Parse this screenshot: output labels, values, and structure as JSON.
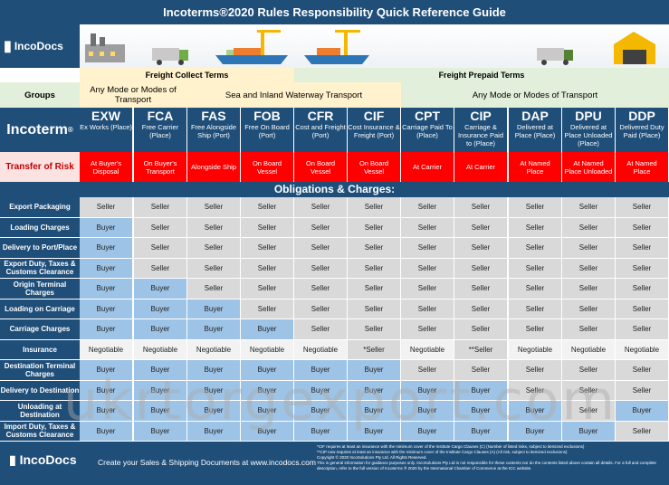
{
  "title": "Incoterms®2020 Rules Responsibility Quick Reference Guide",
  "brand": "IncoDocs",
  "bands": {
    "collect": "Freight Collect Terms",
    "prepaid": "Freight Prepaid Terms"
  },
  "groups": {
    "label": "Groups",
    "any1": "Any Mode or Modes of Transport",
    "sea": "Sea and Inland Waterway Transport",
    "any2": "Any Mode or Modes of Transport"
  },
  "incoterm_label": "Incoterm",
  "risk_label": "Transfer of Risk",
  "obligations_title": "Obligations & Charges:",
  "terms": [
    {
      "code": "EXW",
      "desc": "Ex Works (Place)",
      "risk": "At Buyer's Disposal"
    },
    {
      "code": "FCA",
      "desc": "Free Carrier (Place)",
      "risk": "On Buyer's Transport"
    },
    {
      "code": "FAS",
      "desc": "Free Alongside Ship (Port)",
      "risk": "Alongside Ship"
    },
    {
      "code": "FOB",
      "desc": "Free On Board (Port)",
      "risk": "On Board Vessel"
    },
    {
      "code": "CFR",
      "desc": "Cost and Freight (Port)",
      "risk": "On Board Vessel"
    },
    {
      "code": "CIF",
      "desc": "Cost Insurance & Freight (Port)",
      "risk": "On Board Vessel"
    },
    {
      "code": "CPT",
      "desc": "Carriage Paid To (Place)",
      "risk": "At Carrier"
    },
    {
      "code": "CIP",
      "desc": "Carriage & Insurance Paid to (Place)",
      "risk": "At Carrier"
    },
    {
      "code": "DAP",
      "desc": "Delivered at Place (Place)",
      "risk": "At Named Place"
    },
    {
      "code": "DPU",
      "desc": "Delivered at Place Unloaded (Place)",
      "risk": "At Named Place Unloaded"
    },
    {
      "code": "DDP",
      "desc": "Delivered Duty Paid (Place)",
      "risk": "At Named Place"
    }
  ],
  "rows": [
    {
      "label": "Export Packaging",
      "cells": [
        "Seller",
        "Seller",
        "Seller",
        "Seller",
        "Seller",
        "Seller",
        "Seller",
        "Seller",
        "Seller",
        "Seller",
        "Seller"
      ]
    },
    {
      "label": "Loading Charges",
      "cells": [
        "Buyer",
        "Seller",
        "Seller",
        "Seller",
        "Seller",
        "Seller",
        "Seller",
        "Seller",
        "Seller",
        "Seller",
        "Seller"
      ]
    },
    {
      "label": "Delivery to Port/Place",
      "cells": [
        "Buyer",
        "Seller",
        "Seller",
        "Seller",
        "Seller",
        "Seller",
        "Seller",
        "Seller",
        "Seller",
        "Seller",
        "Seller"
      ]
    },
    {
      "label": "Export Duty, Taxes & Customs Clearance",
      "cells": [
        "Buyer",
        "Seller",
        "Seller",
        "Seller",
        "Seller",
        "Seller",
        "Seller",
        "Seller",
        "Seller",
        "Seller",
        "Seller"
      ]
    },
    {
      "label": "Origin Terminal Charges",
      "cells": [
        "Buyer",
        "Buyer",
        "Seller",
        "Seller",
        "Seller",
        "Seller",
        "Seller",
        "Seller",
        "Seller",
        "Seller",
        "Seller"
      ]
    },
    {
      "label": "Loading on Carriage",
      "cells": [
        "Buyer",
        "Buyer",
        "Buyer",
        "Seller",
        "Seller",
        "Seller",
        "Seller",
        "Seller",
        "Seller",
        "Seller",
        "Seller"
      ]
    },
    {
      "label": "Carriage Charges",
      "cells": [
        "Buyer",
        "Buyer",
        "Buyer",
        "Buyer",
        "Seller",
        "Seller",
        "Seller",
        "Seller",
        "Seller",
        "Seller",
        "Seller"
      ]
    },
    {
      "label": "Insurance",
      "cells": [
        "Negotiable",
        "Negotiable",
        "Negotiable",
        "Negotiable",
        "Negotiable",
        "*Seller",
        "Negotiable",
        "**Seller",
        "Negotiable",
        "Negotiable",
        "Negotiable"
      ]
    },
    {
      "label": "Destination Terminal Charges",
      "cells": [
        "Buyer",
        "Buyer",
        "Buyer",
        "Buyer",
        "Buyer",
        "Buyer",
        "Seller",
        "Seller",
        "Seller",
        "Seller",
        "Seller"
      ]
    },
    {
      "label": "Delivery to Destination",
      "cells": [
        "Buyer",
        "Buyer",
        "Buyer",
        "Buyer",
        "Buyer",
        "Buyer",
        "Buyer",
        "Buyer",
        "Seller",
        "Seller",
        "Seller"
      ]
    },
    {
      "label": "Unloading at Destination",
      "cells": [
        "Buyer",
        "Buyer",
        "Buyer",
        "Buyer",
        "Buyer",
        "Buyer",
        "Buyer",
        "Buyer",
        "Buyer",
        "Seller",
        "Buyer"
      ]
    },
    {
      "label": "Import Duty, Taxes & Customs Clearance",
      "cells": [
        "Buyer",
        "Buyer",
        "Buyer",
        "Buyer",
        "Buyer",
        "Buyer",
        "Buyer",
        "Buyer",
        "Buyer",
        "Buyer",
        "Seller"
      ]
    }
  ],
  "footer": {
    "brand": "IncoDocs",
    "tagline": "Create your Sales & Shipping Documents at www.incodocs.com",
    "notes": [
      "*CIF requires at least an insurance with the minimum cover of the Institute Cargo Clauses (C) (Number of listed risks, subject to itemized exclusions)",
      "**CIP now requires at least an insurance with the minimum cover of the Institute Cargo Clauses (A) (All risk, subject to itemized exclusions)",
      "Copyright © 2020 IncoSolutions Pty Ltd. All Rights Reserved.",
      "This is general information for guidance purposes only. IncoSolutions Pty Ltd is not responsible for these contents nor do the contents listed above contain all details. For a full and complete description, refer to the full version of Incoterms ® 2020 by the International Chamber of Commerce at the ICC website."
    ]
  },
  "watermark": "ukrtorgexport.com",
  "colors": {
    "navy": "#1f4e79",
    "seller": "#d9d9d9",
    "buyer": "#9dc3e6",
    "risk": "#ff0000",
    "band_collect": "#fff2cc",
    "band_prepaid": "#e2efda"
  }
}
